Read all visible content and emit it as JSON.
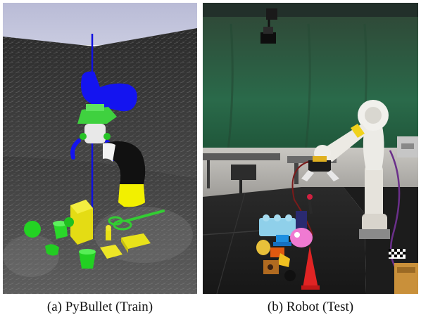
{
  "figure": {
    "panels": [
      {
        "id": "a",
        "caption": "(a) PyBullet (Train)"
      },
      {
        "id": "b",
        "caption": "(b) Robot (Test)"
      }
    ]
  }
}
